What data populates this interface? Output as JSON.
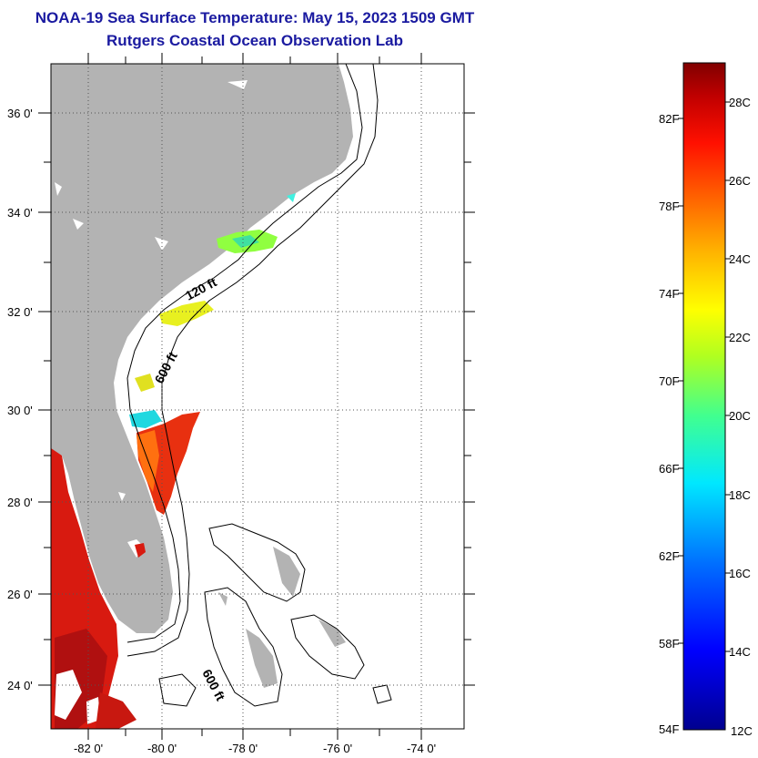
{
  "title_line1": "NOAA-19 Sea Surface Temperature:  May 15, 2023 1509 GMT",
  "title_line2": "Rutgers Coastal Ocean Observation Lab",
  "map": {
    "lat_ticks": [
      "24 0'",
      "26 0'",
      "28 0'",
      "30 0'",
      "32 0'",
      "34 0'",
      "36 0'"
    ],
    "lon_ticks": [
      "-82 0'",
      "-80 0'",
      "-78 0'",
      "-76 0'",
      "-74 0'"
    ],
    "contour_labels": [
      "120 ft",
      "600 ft",
      "600 ft"
    ],
    "colors": {
      "land": "#b3b3b3",
      "ocean": "#ffffff",
      "grid": "#555555"
    }
  },
  "colorbar": {
    "fahrenheit_labels": [
      "82F",
      "78F",
      "74F",
      "70F",
      "66F",
      "62F",
      "58F",
      "54F"
    ],
    "celsius_labels": [
      "28C",
      "26C",
      "24C",
      "22C",
      "20C",
      "18C",
      "16C",
      "14C",
      "12C"
    ],
    "range_c": [
      12,
      29
    ]
  }
}
